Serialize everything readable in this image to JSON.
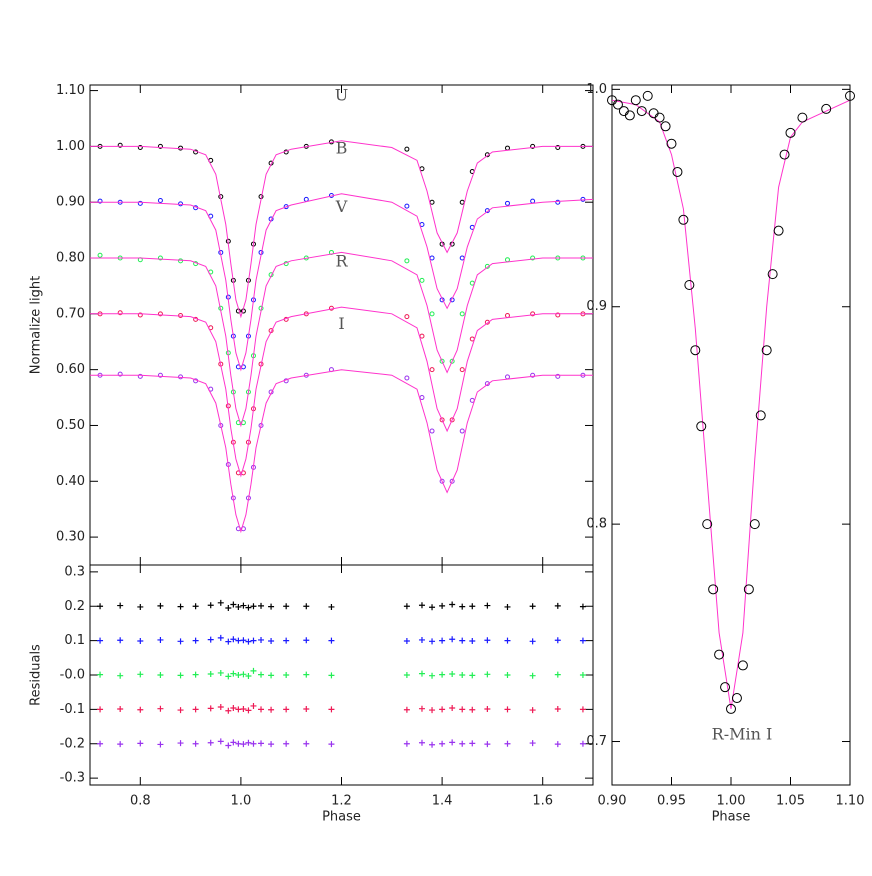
{
  "chart_data": [
    {
      "type": "scatter",
      "ylabel": "Normalize light",
      "xlim": [
        0.7,
        1.7
      ],
      "ylim": [
        0.25,
        1.11
      ],
      "yticks": [
        {
          "value": 0.3,
          "label": "0.30"
        },
        {
          "value": 0.4,
          "label": "0.40"
        },
        {
          "value": 0.5,
          "label": "0.50"
        },
        {
          "value": 0.6,
          "label": "0.60"
        },
        {
          "value": 0.7,
          "label": "0.70"
        },
        {
          "value": 0.8,
          "label": "0.80"
        },
        {
          "value": 0.9,
          "label": "0.90"
        },
        {
          "value": 1.0,
          "label": "1.00"
        },
        {
          "value": 1.1,
          "label": "1.10"
        }
      ],
      "x": [
        0.72,
        0.76,
        0.8,
        0.84,
        0.88,
        0.91,
        0.94,
        0.96,
        0.975,
        0.985,
        0.995,
        1.005,
        1.015,
        1.025,
        1.04,
        1.06,
        1.09,
        1.13,
        1.18,
        1.33,
        1.36,
        1.38,
        1.4,
        1.42,
        1.44,
        1.46,
        1.49,
        1.53,
        1.58,
        1.63,
        1.68
      ],
      "model_x": [
        0.7,
        0.8,
        0.9,
        0.93,
        0.95,
        0.97,
        0.98,
        0.99,
        1.0,
        1.01,
        1.02,
        1.03,
        1.05,
        1.07,
        1.1,
        1.2,
        1.3,
        1.35,
        1.37,
        1.39,
        1.41,
        1.43,
        1.45,
        1.47,
        1.5,
        1.6,
        1.7
      ],
      "model_color": "#ff33cc",
      "series": [
        {
          "name": "U",
          "color": "#000000",
          "values": [
            1.0,
            1.002,
            0.998,
            1.0,
            0.997,
            0.99,
            0.975,
            0.91,
            0.83,
            0.76,
            0.705,
            0.705,
            0.76,
            0.825,
            0.91,
            0.97,
            0.99,
            1.0,
            1.008,
            0.995,
            0.96,
            0.9,
            0.825,
            0.825,
            0.9,
            0.955,
            0.985,
            0.997,
            1.0,
            0.998,
            1.0
          ],
          "model": [
            1.0,
            1.0,
            0.995,
            0.985,
            0.95,
            0.86,
            0.79,
            0.725,
            0.695,
            0.725,
            0.79,
            0.86,
            0.95,
            0.985,
            0.995,
            1.01,
            0.998,
            0.975,
            0.92,
            0.845,
            0.81,
            0.845,
            0.92,
            0.97,
            0.99,
            1.0,
            1.0
          ]
        },
        {
          "name": "B",
          "color": "#1a1aff",
          "values": [
            0.902,
            0.9,
            0.898,
            0.903,
            0.897,
            0.89,
            0.875,
            0.81,
            0.73,
            0.66,
            0.605,
            0.605,
            0.66,
            0.725,
            0.81,
            0.87,
            0.892,
            0.905,
            0.912,
            0.893,
            0.86,
            0.8,
            0.725,
            0.725,
            0.8,
            0.855,
            0.885,
            0.898,
            0.902,
            0.9,
            0.905
          ],
          "model": [
            0.9,
            0.9,
            0.895,
            0.885,
            0.85,
            0.76,
            0.69,
            0.63,
            0.6,
            0.63,
            0.69,
            0.76,
            0.85,
            0.885,
            0.895,
            0.915,
            0.9,
            0.875,
            0.82,
            0.745,
            0.71,
            0.745,
            0.82,
            0.87,
            0.89,
            0.9,
            0.905
          ]
        },
        {
          "name": "V",
          "color": "#22ee55",
          "values": [
            0.805,
            0.8,
            0.797,
            0.8,
            0.795,
            0.79,
            0.775,
            0.71,
            0.63,
            0.56,
            0.505,
            0.505,
            0.56,
            0.625,
            0.71,
            0.77,
            0.79,
            0.8,
            0.81,
            0.795,
            0.76,
            0.7,
            0.615,
            0.615,
            0.7,
            0.755,
            0.785,
            0.797,
            0.8,
            0.8,
            0.8
          ],
          "model": [
            0.8,
            0.8,
            0.795,
            0.785,
            0.75,
            0.66,
            0.59,
            0.53,
            0.5,
            0.53,
            0.59,
            0.66,
            0.75,
            0.785,
            0.795,
            0.81,
            0.795,
            0.77,
            0.715,
            0.635,
            0.595,
            0.635,
            0.715,
            0.77,
            0.79,
            0.8,
            0.8
          ]
        },
        {
          "name": "R",
          "color": "#ee1a55",
          "values": [
            0.7,
            0.702,
            0.698,
            0.7,
            0.697,
            0.69,
            0.675,
            0.61,
            0.535,
            0.47,
            0.415,
            0.415,
            0.47,
            0.53,
            0.61,
            0.67,
            0.69,
            0.7,
            0.71,
            0.695,
            0.66,
            0.6,
            0.51,
            0.51,
            0.6,
            0.655,
            0.685,
            0.697,
            0.7,
            0.698,
            0.7
          ],
          "model": [
            0.7,
            0.7,
            0.695,
            0.685,
            0.65,
            0.565,
            0.495,
            0.44,
            0.41,
            0.44,
            0.495,
            0.565,
            0.65,
            0.685,
            0.695,
            0.712,
            0.7,
            0.675,
            0.615,
            0.53,
            0.49,
            0.53,
            0.615,
            0.67,
            0.69,
            0.7,
            0.7
          ]
        },
        {
          "name": "I",
          "color": "#9933ee",
          "values": [
            0.59,
            0.592,
            0.588,
            0.59,
            0.587,
            0.58,
            0.565,
            0.5,
            0.43,
            0.37,
            0.315,
            0.315,
            0.37,
            0.425,
            0.5,
            0.56,
            0.58,
            0.59,
            0.6,
            0.585,
            0.55,
            0.49,
            0.4,
            0.4,
            0.49,
            0.545,
            0.575,
            0.587,
            0.59,
            0.588,
            0.59
          ],
          "model": [
            0.59,
            0.59,
            0.585,
            0.575,
            0.54,
            0.46,
            0.395,
            0.34,
            0.31,
            0.34,
            0.395,
            0.46,
            0.54,
            0.575,
            0.585,
            0.6,
            0.59,
            0.565,
            0.505,
            0.42,
            0.38,
            0.42,
            0.505,
            0.56,
            0.58,
            0.59,
            0.59
          ]
        }
      ]
    },
    {
      "type": "scatter",
      "ylabel": "Residuals",
      "xlabel": "Phase",
      "xlim": [
        0.7,
        1.7
      ],
      "ylim": [
        -0.32,
        0.32
      ],
      "xticks": [
        0.8,
        {
          "value": 1.0,
          "label": "1.0"
        },
        1.2,
        1.4,
        1.6
      ],
      "yticks": [
        -0.3,
        -0.2,
        -0.1,
        {
          "value": 0,
          "label": "-0.0"
        },
        0.1,
        0.2,
        0.3
      ],
      "x": [
        0.72,
        0.76,
        0.8,
        0.84,
        0.88,
        0.91,
        0.94,
        0.96,
        0.975,
        0.985,
        0.995,
        1.005,
        1.015,
        1.025,
        1.04,
        1.06,
        1.09,
        1.13,
        1.18,
        1.33,
        1.36,
        1.38,
        1.4,
        1.42,
        1.44,
        1.46,
        1.49,
        1.53,
        1.58,
        1.63,
        1.68
      ],
      "series": [
        {
          "color": "#000000",
          "values": [
            0.2,
            0.202,
            0.198,
            0.201,
            0.199,
            0.2,
            0.203,
            0.21,
            0.195,
            0.205,
            0.198,
            0.202,
            0.196,
            0.2,
            0.201,
            0.199,
            0.2,
            0.2,
            0.198,
            0.2,
            0.203,
            0.197,
            0.201,
            0.205,
            0.199,
            0.2,
            0.202,
            0.198,
            0.2,
            0.201,
            0.199
          ]
        },
        {
          "color": "#1a1aff",
          "values": [
            0.1,
            0.101,
            0.099,
            0.102,
            0.098,
            0.1,
            0.103,
            0.108,
            0.097,
            0.104,
            0.1,
            0.101,
            0.097,
            0.1,
            0.102,
            0.099,
            0.1,
            0.101,
            0.1,
            0.099,
            0.102,
            0.098,
            0.1,
            0.104,
            0.1,
            0.099,
            0.101,
            0.1,
            0.098,
            0.101,
            0.1
          ]
        },
        {
          "color": "#22ee55",
          "values": [
            0.001,
            -0.002,
            0.002,
            0.0,
            -0.001,
            0.001,
            0.003,
            0.006,
            -0.004,
            0.004,
            0.0,
            0.002,
            -0.003,
            0.012,
            0.001,
            -0.001,
            0.0,
            0.001,
            -0.001,
            0.0,
            0.004,
            -0.002,
            0.001,
            0.003,
            0.0,
            -0.001,
            0.002,
            0.0,
            -0.002,
            0.001,
            0.0
          ]
        },
        {
          "color": "#ee1a55",
          "values": [
            -0.1,
            -0.099,
            -0.101,
            -0.098,
            -0.102,
            -0.1,
            -0.097,
            -0.093,
            -0.104,
            -0.096,
            -0.1,
            -0.099,
            -0.103,
            -0.09,
            -0.1,
            -0.101,
            -0.1,
            -0.099,
            -0.1,
            -0.101,
            -0.098,
            -0.102,
            -0.1,
            -0.096,
            -0.1,
            -0.101,
            -0.099,
            -0.1,
            -0.102,
            -0.099,
            -0.1
          ]
        },
        {
          "color": "#9933ee",
          "values": [
            -0.2,
            -0.201,
            -0.199,
            -0.202,
            -0.198,
            -0.2,
            -0.197,
            -0.193,
            -0.205,
            -0.196,
            -0.2,
            -0.201,
            -0.197,
            -0.2,
            -0.199,
            -0.201,
            -0.2,
            -0.2,
            -0.201,
            -0.2,
            -0.197,
            -0.203,
            -0.2,
            -0.196,
            -0.2,
            -0.199,
            -0.201,
            -0.2,
            -0.198,
            -0.201,
            -0.2
          ]
        }
      ]
    },
    {
      "type": "scatter",
      "xlabel": "Phase",
      "annotation": "R-Min I",
      "xlim": [
        0.9,
        1.1
      ],
      "ylim": [
        0.68,
        1.002
      ],
      "xticks": [
        {
          "value": 0.9,
          "label": "0.90"
        },
        0.95,
        {
          "value": 1.0,
          "label": "1.00"
        },
        1.05,
        {
          "value": 1.1,
          "label": "1.10"
        }
      ],
      "yticks": [
        0.7,
        0.8,
        0.9,
        {
          "value": 1.0,
          "label": "1.0"
        }
      ],
      "color": "#000000",
      "model_color": "#ff33cc",
      "x": [
        0.9,
        0.905,
        0.91,
        0.915,
        0.92,
        0.925,
        0.93,
        0.935,
        0.94,
        0.945,
        0.95,
        0.955,
        0.96,
        0.965,
        0.97,
        0.975,
        0.98,
        0.985,
        0.99,
        0.995,
        1.0,
        1.005,
        1.01,
        1.015,
        1.02,
        1.025,
        1.03,
        1.035,
        1.04,
        1.045,
        1.05,
        1.06,
        1.08,
        1.1
      ],
      "values": [
        0.995,
        0.993,
        0.99,
        0.988,
        0.995,
        0.99,
        0.997,
        0.989,
        0.987,
        0.983,
        0.975,
        0.962,
        0.94,
        0.91,
        0.88,
        0.845,
        0.8,
        0.77,
        0.74,
        0.725,
        0.715,
        0.72,
        0.735,
        0.77,
        0.8,
        0.85,
        0.88,
        0.915,
        0.935,
        0.97,
        0.98,
        0.987,
        0.991,
        0.997
      ],
      "model_x": [
        0.9,
        0.92,
        0.94,
        0.95,
        0.96,
        0.97,
        0.98,
        0.99,
        1.0,
        1.01,
        1.02,
        1.03,
        1.04,
        1.05,
        1.06,
        1.08,
        1.1
      ],
      "model": [
        0.995,
        0.993,
        0.985,
        0.97,
        0.945,
        0.89,
        0.82,
        0.75,
        0.715,
        0.75,
        0.83,
        0.9,
        0.955,
        0.978,
        0.985,
        0.99,
        0.995
      ]
    }
  ]
}
